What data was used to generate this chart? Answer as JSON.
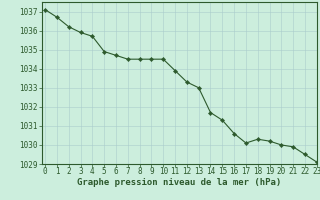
{
  "x": [
    0,
    1,
    2,
    3,
    4,
    5,
    6,
    7,
    8,
    9,
    10,
    11,
    12,
    13,
    14,
    15,
    16,
    17,
    18,
    19,
    20,
    21,
    22,
    23
  ],
  "y": [
    1037.1,
    1036.7,
    1036.2,
    1035.9,
    1035.7,
    1034.9,
    1034.7,
    1034.5,
    1034.5,
    1034.5,
    1034.5,
    1033.9,
    1033.3,
    1033.0,
    1031.7,
    1031.3,
    1030.6,
    1030.1,
    1030.3,
    1030.2,
    1030.0,
    1029.9,
    1029.5,
    1029.1
  ],
  "ylim": [
    1029,
    1037.5
  ],
  "xlim": [
    -0.3,
    23
  ],
  "yticks": [
    1029,
    1030,
    1031,
    1032,
    1033,
    1034,
    1035,
    1036,
    1037
  ],
  "xticks": [
    0,
    1,
    2,
    3,
    4,
    5,
    6,
    7,
    8,
    9,
    10,
    11,
    12,
    13,
    14,
    15,
    16,
    17,
    18,
    19,
    20,
    21,
    22,
    23
  ],
  "xlabel": "Graphe pression niveau de la mer (hPa)",
  "line_color": "#2d5a2d",
  "marker_color": "#2d5a2d",
  "bg_color": "#cceedd",
  "grid_color_major": "#aacccc",
  "grid_color_minor": "#bbdddd",
  "tick_label_color": "#2d5a2d",
  "xlabel_color": "#2d5a2d",
  "xlabel_fontsize": 6.5,
  "tick_fontsize": 5.5,
  "line_width": 0.8,
  "marker_size": 2.2,
  "border_color": "#2d5a2d"
}
